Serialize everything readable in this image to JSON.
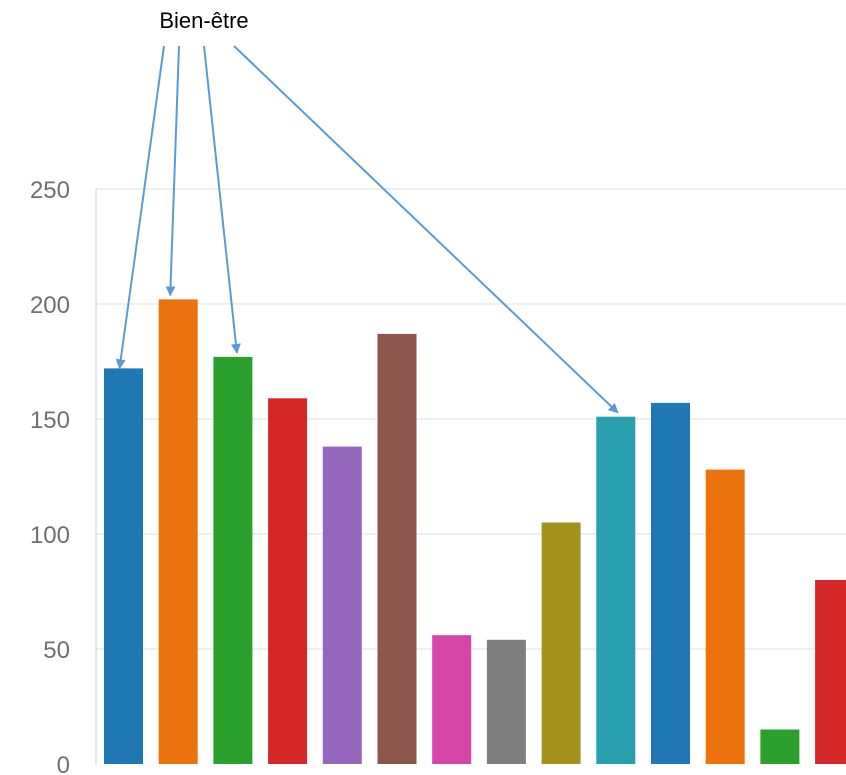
{
  "chart_data": {
    "type": "bar",
    "title": "",
    "xlabel": "",
    "ylabel": "",
    "ylim": [
      0,
      250
    ],
    "yticks": [
      0,
      50,
      100,
      150,
      200,
      250
    ],
    "grid": true,
    "legend": "none",
    "categories": [
      "",
      "",
      "",
      "",
      "",
      "",
      "",
      "",
      "",
      "",
      "",
      "",
      "",
      ""
    ],
    "values": [
      172,
      202,
      177,
      159,
      138,
      187,
      56,
      54,
      105,
      151,
      157,
      128,
      15,
      80
    ],
    "colors": [
      "#1f77b4",
      "#ec720d",
      "#2ca02c",
      "#d62728",
      "#9467bd",
      "#8c564b",
      "#d546a6",
      "#7f7f7f",
      "#a3931c",
      "#28a0ad",
      "#1f77b4",
      "#ec720d",
      "#2ca02c",
      "#d62728"
    ],
    "annotation": {
      "text": "Bien-être",
      "arrow_color": "#5b9bd5",
      "target_bars": [
        0,
        1,
        2,
        9
      ]
    }
  }
}
